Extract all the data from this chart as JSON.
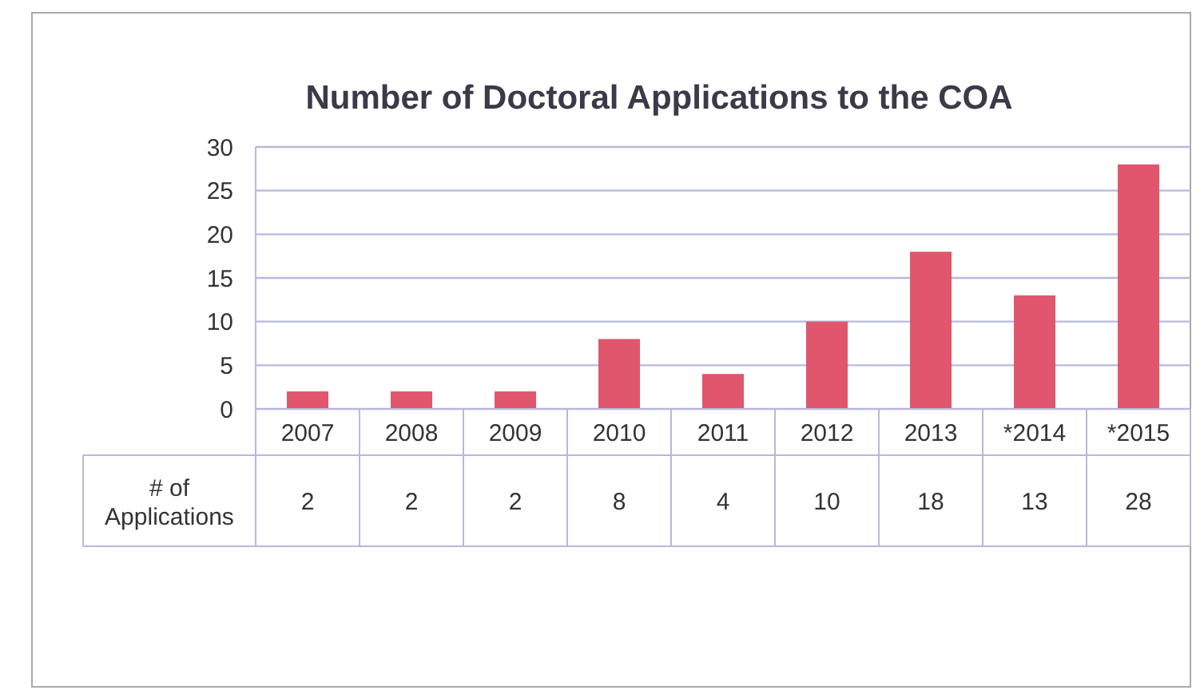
{
  "chart_data": {
    "type": "bar",
    "title": "Number of Doctoral Applications to the COA",
    "categories": [
      "2007",
      "2008",
      "2009",
      "2010",
      "2011",
      "2012",
      "2013",
      "*2014",
      "*2015"
    ],
    "series": [
      {
        "name": "# of Applications",
        "color": "#e0566c",
        "values": [
          2,
          2,
          2,
          8,
          4,
          10,
          18,
          13,
          28
        ]
      }
    ],
    "ylim": [
      0,
      30
    ],
    "yticks": [
      0,
      5,
      10,
      15,
      20,
      25,
      30
    ],
    "grid": "y",
    "data_labels": true
  }
}
